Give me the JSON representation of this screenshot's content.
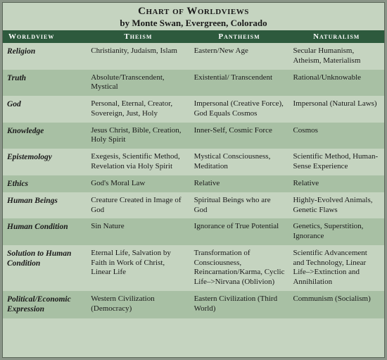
{
  "title": "Chart of Worldviews",
  "subtitle": "by Monte Swan, Evergreen, Colorado",
  "headers": [
    "Worldview",
    "Theism",
    "Pantheism",
    "Naturalism"
  ],
  "rows": [
    {
      "label": "Religion",
      "theism": "Christianity, Judaism, Islam",
      "pantheism": "Eastern/New Age",
      "naturalism": "Secular Humanism, Atheism, Materialism"
    },
    {
      "label": "Truth",
      "theism": "Absolute/Transcendent, Mystical",
      "pantheism": "Existential/ Transcendent",
      "naturalism": "Rational/Unknowable"
    },
    {
      "label": "God",
      "theism": "Personal, Eternal, Creator, Sovereign, Just, Holy",
      "pantheism": "Impersonal (Creative Force), God Equals Cosmos",
      "naturalism": "Impersonal (Natural Laws)"
    },
    {
      "label": "Knowledge",
      "theism": "Jesus Christ, Bible, Creation, Holy Spirit",
      "pantheism": "Inner-Self, Cosmic Force",
      "naturalism": "Cosmos"
    },
    {
      "label": "Epistemology",
      "theism": "Exegesis, Scientific Method, Revelation via Holy Spirit",
      "pantheism": "Mystical Consciousness, Meditation",
      "naturalism": "Scientific Method, Human-Sense Experience"
    },
    {
      "label": "Ethics",
      "theism": "God's Moral Law",
      "pantheism": "Relative",
      "naturalism": "Relative"
    },
    {
      "label": "Human Beings",
      "theism": "Creature Created in Image of God",
      "pantheism": "Spiritual Beings who are God",
      "naturalism": "Highly-Evolved Animals, Genetic Flaws"
    },
    {
      "label": "Human Condition",
      "theism": "Sin Nature",
      "pantheism": "Ignorance of True Potential",
      "naturalism": "Genetics, Superstition, Ignorance"
    },
    {
      "label": "Solution to Human Condition",
      "theism": "Eternal Life, Salvation by Faith in Work of Christ, Linear Life",
      "pantheism": "Transformation of Consciousness, Reincarnation/Karma, Cyclic Life–>Nirvana (Oblivion)",
      "naturalism": "Scientific Advancement and Technology, Linear Life–>Extinction and Annihilation"
    },
    {
      "label": "Political/Economic Expression",
      "theism": "Western Civilization (Democracy)",
      "pantheism": "Eastern Civilization (Third World)",
      "naturalism": "Communism (Socialism)"
    }
  ],
  "colors": {
    "page_bg": "#8a9588",
    "table_bg_a": "#c5d4c0",
    "table_bg_b": "#a8c0a4",
    "header_bg": "#2d5a3d",
    "header_fg": "#ffffff",
    "text": "#1a1a1a"
  }
}
